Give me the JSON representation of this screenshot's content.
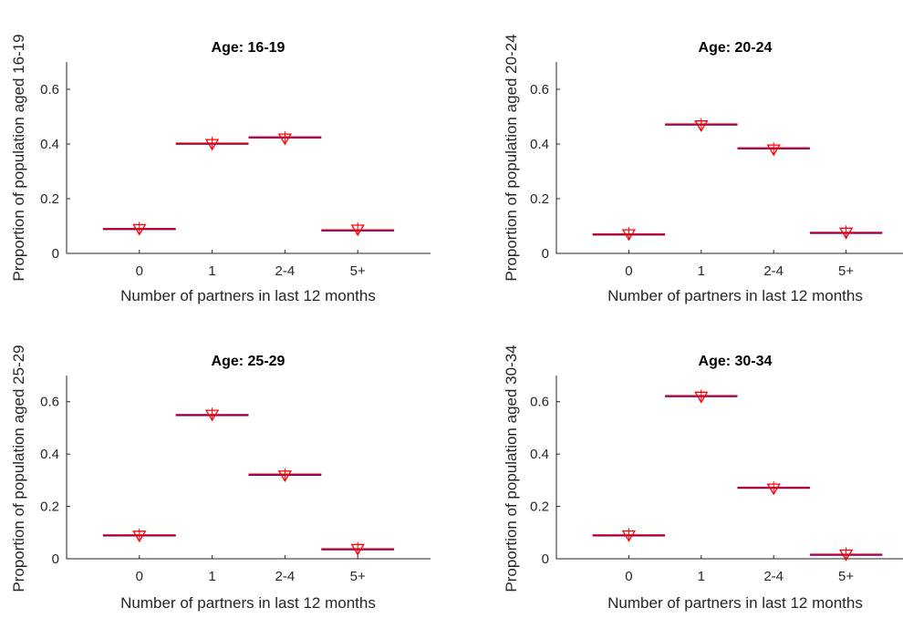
{
  "chart_data": [
    {
      "type": "scatter",
      "title": "Age: 16-19",
      "xlabel": "Number of partners in last 12 months",
      "ylabel": "Proportion of population aged 16-19",
      "categories": [
        "0",
        "1",
        "2-4",
        "5+"
      ],
      "ylim": [
        0,
        0.7
      ],
      "yticks": [
        "0",
        "0.2",
        "0.4",
        "0.6"
      ],
      "series": [
        {
          "values": [
            0.09,
            0.402,
            0.425,
            0.085
          ],
          "marker": "line",
          "color": "#ff0000"
        },
        {
          "values": [
            0.087,
            0.398,
            0.418,
            0.085
          ],
          "marker": "triangle-down",
          "color": "#ff0000"
        }
      ]
    },
    {
      "type": "scatter",
      "title": "Age: 20-24",
      "xlabel": "Number of partners in last 12 months",
      "ylabel": "Proportion of population aged 20-24",
      "categories": [
        "0",
        "1",
        "2-4",
        "5+"
      ],
      "ylim": [
        0,
        0.7
      ],
      "yticks": [
        "0",
        "0.2",
        "0.4",
        "0.6"
      ],
      "series": [
        {
          "values": [
            0.07,
            0.472,
            0.385,
            0.076
          ],
          "marker": "line",
          "color": "#ff0000"
        },
        {
          "values": [
            0.068,
            0.466,
            0.378,
            0.074
          ],
          "marker": "triangle-down",
          "color": "#ff0000"
        }
      ]
    },
    {
      "type": "scatter",
      "title": "Age: 25-29",
      "xlabel": "Number of partners in last 12 months",
      "ylabel": "Proportion of population aged 25-29",
      "categories": [
        "0",
        "1",
        "2-4",
        "5+"
      ],
      "ylim": [
        0,
        0.7
      ],
      "yticks": [
        "0",
        "0.2",
        "0.4",
        "0.6"
      ],
      "series": [
        {
          "values": [
            0.09,
            0.55,
            0.322,
            0.037
          ],
          "marker": "line",
          "color": "#ff0000"
        },
        {
          "values": [
            0.086,
            0.548,
            0.316,
            0.035
          ],
          "marker": "triangle-down",
          "color": "#ff0000"
        }
      ]
    },
    {
      "type": "scatter",
      "title": "Age: 30-34",
      "xlabel": "Number of partners in last 12 months",
      "ylabel": "Proportion of population aged 30-34",
      "categories": [
        "0",
        "1",
        "2-4",
        "5+"
      ],
      "ylim": [
        0,
        0.7
      ],
      "yticks": [
        "0",
        "0.2",
        "0.4",
        "0.6"
      ],
      "series": [
        {
          "values": [
            0.09,
            0.622,
            0.272,
            0.016
          ],
          "marker": "line",
          "color": "#ff0000"
        },
        {
          "values": [
            0.087,
            0.617,
            0.266,
            0.014
          ],
          "marker": "triangle-down",
          "color": "#ff0000"
        }
      ]
    }
  ],
  "style": {
    "observed_line_color": "#ff0000",
    "observed_line_underlay_color": "#4b0082",
    "marker_color": "#ff0000",
    "axis_color": "#262626"
  }
}
